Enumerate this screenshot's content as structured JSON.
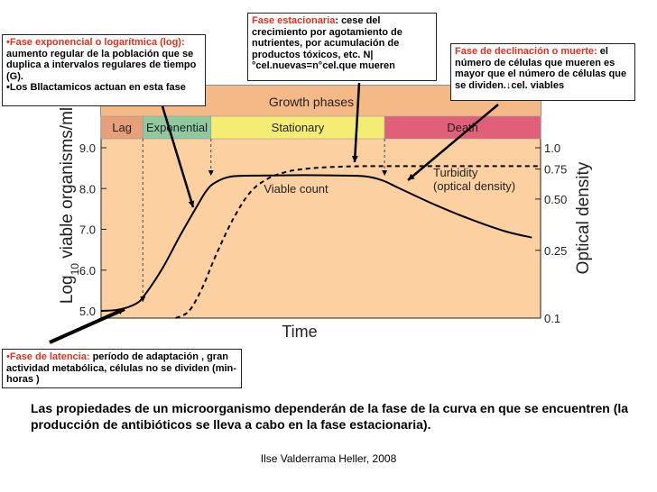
{
  "chart_data": {
    "type": "line",
    "title": "Growth phases",
    "xlabel": "Time",
    "ylabel": "Log10 viable organisms/ml",
    "ylabel_right": "Optical density",
    "y_ticks": [
      "5.0",
      "6.0",
      "7.0",
      "8.0",
      "9.0"
    ],
    "y_ticks_right": [
      "0.1",
      "0.25",
      "0.50",
      "0.75",
      "1.0"
    ],
    "ylim": [
      5.0,
      9.0
    ],
    "y2_scale": "log",
    "y2lim": [
      0.1,
      1.0
    ],
    "xlim": [
      0,
      100
    ],
    "phases": [
      {
        "label": "Lag",
        "start": 0,
        "end": 9.5,
        "color": "#e8a07a"
      },
      {
        "label": "Exponential",
        "start": 9.5,
        "end": 25,
        "color": "#8fc9a0"
      },
      {
        "label": "Stationary",
        "start": 25,
        "end": 64.5,
        "color": "#f5ec73"
      },
      {
        "label": "Death",
        "start": 64.5,
        "end": 100,
        "color": "#e0607a"
      }
    ],
    "series": [
      {
        "name": "Viable count",
        "style": "solid",
        "x": [
          0,
          4,
          8,
          10,
          14,
          18,
          22,
          24,
          26,
          30,
          38,
          46,
          54,
          60,
          64,
          68,
          76,
          84,
          92,
          98
        ],
        "y": [
          5.0,
          5.03,
          5.18,
          5.4,
          6.05,
          6.85,
          7.6,
          7.95,
          8.15,
          8.3,
          8.32,
          8.33,
          8.32,
          8.3,
          8.2,
          8.0,
          7.6,
          7.25,
          6.95,
          6.8
        ]
      },
      {
        "name": "Turbidity (optical density)",
        "style": "dashed",
        "axis": "right",
        "x": [
          17,
          20,
          23,
          26,
          30,
          34,
          38,
          42,
          46,
          52,
          60,
          70,
          80,
          90,
          100
        ],
        "y": [
          0.1,
          0.11,
          0.15,
          0.23,
          0.38,
          0.55,
          0.66,
          0.72,
          0.75,
          0.77,
          0.78,
          0.78,
          0.78,
          0.78,
          0.78
        ]
      }
    ],
    "annotations": [
      "Viable count",
      "Turbidity",
      "(optical density)"
    ],
    "grid": false,
    "background": "#fcd0a0"
  },
  "callouts": {
    "exponential": {
      "title": "•Fase exponencial o logarítmica (log):",
      "text": " aumento regular de la población que se duplica a intervalos regulares de tiempo (G).",
      "extra": "•Los Bllactamicos actuan en esta fase"
    },
    "stationary": {
      "title": "Fase estacionaria",
      "text": ": cese del crecimiento por agotamiento de nutrientes, por acumulación de productos tóxicos, etc. N|°cel.nuevas=n°cel.que mueren"
    },
    "death": {
      "title": "Fase de declinación o muerte:",
      "text": " el número de células que mueren es mayor que el número de células que se dividen.↓cel. viables"
    },
    "lag": {
      "title": "•Fase de latencia:",
      "text": " período de adaptación , gran actividad metabólica, células no se dividen (min-horas )"
    }
  },
  "caption": "Las propiedades de un microorganismo dependerán de la fase de la curva en que se encuentren (la producción de antibióticos se lleva a cabo en la fase estacionaria).",
  "credit": "Ilse Valderrama Heller, 2008",
  "colors": {
    "plot_bg": "#fcd0a0",
    "callout_title": "#e0301e",
    "axis": "#222222"
  }
}
